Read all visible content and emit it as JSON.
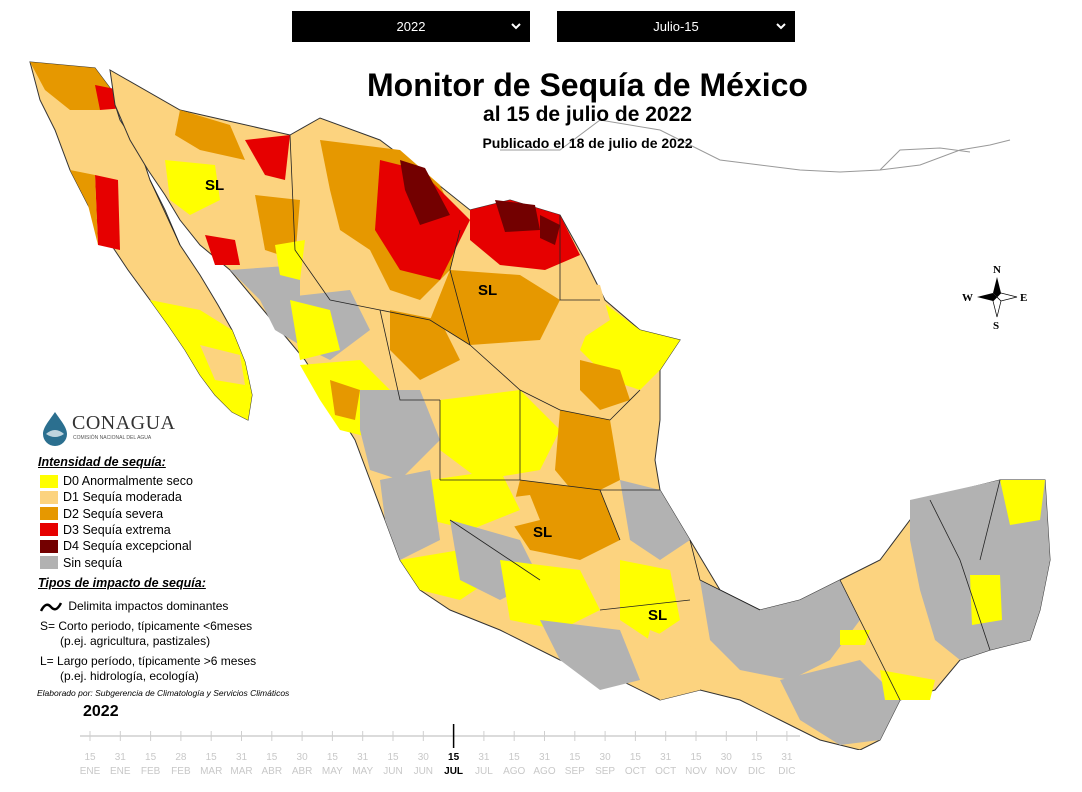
{
  "controls": {
    "year_select": "2022",
    "date_select": "Julio-15"
  },
  "title": {
    "main": "Monitor de Sequía de México",
    "date": "al 15 de julio de 2022",
    "published": "Publicado el 18 de julio de 2022"
  },
  "map": {
    "labels": [
      "SL",
      "SL",
      "SL",
      "SL"
    ],
    "compass": {
      "n": "N",
      "s": "S",
      "e": "E",
      "w": "W"
    }
  },
  "logo": {
    "name": "CONAGUA",
    "subtitle": "COMISIÓN NACIONAL DEL AGUA"
  },
  "legend": {
    "intensity_title": "Intensidad de sequía:",
    "intensity": [
      {
        "label": "D0 Anormalmente seco",
        "color": "#ffff00"
      },
      {
        "label": "D1 Sequía moderada",
        "color": "#fcd37f"
      },
      {
        "label": "D2 Sequía severa",
        "color": "#e69800"
      },
      {
        "label": "D3 Sequía extrema",
        "color": "#e60000"
      },
      {
        "label": "D4 Sequía excepcional",
        "color": "#730000"
      },
      {
        "label": "Sin sequía",
        "color": "#b2b2b2"
      }
    ],
    "impact_title": "Tipos de impacto de sequía:",
    "impact_line": "Delimita impactos dominantes",
    "short_1": "S= Corto periodo, típicamente <6meses",
    "short_2": "(p.ej. agricultura, pastizales)",
    "long_1": "L= Largo período, típicamente >6 meses",
    "long_2": "(p.ej. hidrología, ecología)",
    "credit": "Elaborado por: Subgerencia de Climatología y Servicios Climáticos"
  },
  "timeline": {
    "year": "2022",
    "ticks": [
      {
        "d": "15",
        "m": "ENE"
      },
      {
        "d": "31",
        "m": "ENE"
      },
      {
        "d": "15",
        "m": "FEB"
      },
      {
        "d": "28",
        "m": "FEB"
      },
      {
        "d": "15",
        "m": "MAR"
      },
      {
        "d": "31",
        "m": "MAR"
      },
      {
        "d": "15",
        "m": "ABR"
      },
      {
        "d": "30",
        "m": "ABR"
      },
      {
        "d": "15",
        "m": "MAY"
      },
      {
        "d": "31",
        "m": "MAY"
      },
      {
        "d": "15",
        "m": "JUN"
      },
      {
        "d": "30",
        "m": "JUN"
      },
      {
        "d": "15",
        "m": "JUL"
      },
      {
        "d": "31",
        "m": "JUL"
      },
      {
        "d": "15",
        "m": "AGO"
      },
      {
        "d": "31",
        "m": "AGO"
      },
      {
        "d": "15",
        "m": "SEP"
      },
      {
        "d": "30",
        "m": "SEP"
      },
      {
        "d": "15",
        "m": "OCT"
      },
      {
        "d": "31",
        "m": "OCT"
      },
      {
        "d": "15",
        "m": "NOV"
      },
      {
        "d": "30",
        "m": "NOV"
      },
      {
        "d": "15",
        "m": "DIC"
      },
      {
        "d": "31",
        "m": "DIC"
      }
    ],
    "selected_index": 12
  }
}
